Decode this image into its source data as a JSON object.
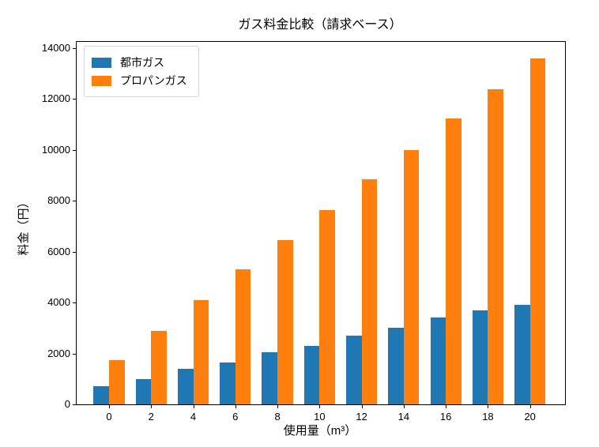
{
  "chart_data": {
    "type": "bar",
    "title": "ガス料金比較（請求ベース）",
    "xlabel": "使用量（m³）",
    "ylabel": "料金（円）",
    "categories": [
      0,
      2,
      4,
      6,
      8,
      10,
      12,
      14,
      16,
      18,
      20
    ],
    "series": [
      {
        "name": "都市ガス",
        "color": "#1f77b4",
        "values": [
          700,
          1000,
          1400,
          1650,
          2050,
          2300,
          2700,
          3000,
          3400,
          3700,
          3900
        ]
      },
      {
        "name": "プロパンガス",
        "color": "#ff7f0e",
        "values": [
          1750,
          2900,
          4100,
          5300,
          6450,
          7650,
          8850,
          10000,
          11250,
          12400,
          13600
        ]
      }
    ],
    "ylim": [
      0,
      14250
    ],
    "yticks": [
      0,
      2000,
      4000,
      6000,
      8000,
      10000,
      12000,
      14000
    ],
    "grid": false,
    "legend_position": "upper left",
    "background_color": "#ffffff",
    "axis_color": "#000000"
  }
}
